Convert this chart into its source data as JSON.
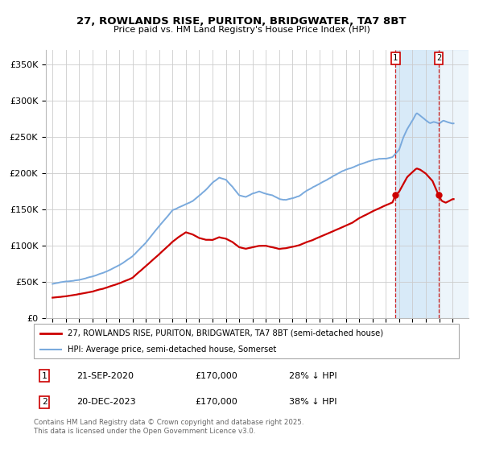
{
  "title1": "27, ROWLANDS RISE, PURITON, BRIDGWATER, TA7 8BT",
  "title2": "Price paid vs. HM Land Registry's House Price Index (HPI)",
  "ylabel_ticks": [
    "£0",
    "£50K",
    "£100K",
    "£150K",
    "£200K",
    "£250K",
    "£300K",
    "£350K"
  ],
  "ylabel_vals": [
    0,
    50000,
    100000,
    150000,
    200000,
    250000,
    300000,
    350000
  ],
  "ylim": [
    0,
    370000
  ],
  "red_line_label": "27, ROWLANDS RISE, PURITON, BRIDGWATER, TA7 8BT (semi-detached house)",
  "blue_line_label": "HPI: Average price, semi-detached house, Somerset",
  "marker1_date": "21-SEP-2020",
  "marker1_price": "£170,000",
  "marker1_pct": "28% ↓ HPI",
  "marker2_date": "20-DEC-2023",
  "marker2_price": "£170,000",
  "marker2_pct": "38% ↓ HPI",
  "footer": "Contains HM Land Registry data © Crown copyright and database right 2025.\nThis data is licensed under the Open Government Licence v3.0.",
  "red_color": "#cc0000",
  "blue_color": "#7aaadd",
  "marker1_x": 2020.72,
  "marker2_x": 2023.97,
  "xlim_left": 1994.5,
  "xlim_right": 2026.2
}
